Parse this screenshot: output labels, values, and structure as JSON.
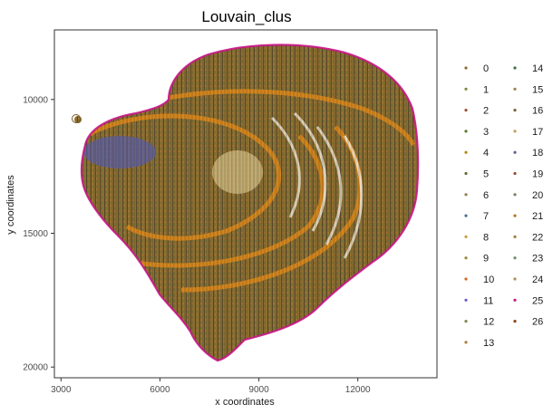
{
  "chart_data": {
    "type": "scatter",
    "title": "Louvain_clus",
    "xlabel": "x coordinates",
    "ylabel": "y coordinates",
    "xlim": [
      2800,
      14400
    ],
    "ylim": [
      7400,
      20400
    ],
    "y_reversed": true,
    "x_ticks": [
      "3000",
      "6000",
      "9000",
      "12000"
    ],
    "x_tick_values": [
      3000,
      6000,
      9000,
      12000
    ],
    "y_ticks": [
      "10000",
      "15000",
      "20000"
    ],
    "y_tick_values": [
      10000,
      15000,
      20000
    ],
    "grid": false,
    "legend_position": "right",
    "legend": {
      "entries": [
        "0",
        "1",
        "2",
        "3",
        "4",
        "5",
        "6",
        "7",
        "8",
        "9",
        "10",
        "11",
        "12",
        "13",
        "14",
        "15",
        "16",
        "17",
        "18",
        "19",
        "20",
        "21",
        "22",
        "23",
        "24",
        "25",
        "26"
      ],
      "colors": [
        "#8c6d31",
        "#7a8c3a",
        "#a0522d",
        "#5a7a2e",
        "#b8860b",
        "#6b6b3a",
        "#8f7a4a",
        "#4f6f8f",
        "#c8a040",
        "#9a8a3a",
        "#d2691e",
        "#6a5acd",
        "#7b8b4b",
        "#b07a3a",
        "#3f6f3f",
        "#a08040",
        "#806030",
        "#c0a060",
        "#5f5f8f",
        "#905030",
        "#708060",
        "#c07020",
        "#9f7f3f",
        "#6f8f5f",
        "#b09050",
        "#c71585",
        "#8b4513"
      ]
    },
    "features": {
      "outline_color": "#c71585",
      "dominant_color": "#8c6d31",
      "accent_band_color": "#e08a1a",
      "cluster_blue_color": "#5b5fa8",
      "light_core_color": "#d8c48a"
    }
  }
}
